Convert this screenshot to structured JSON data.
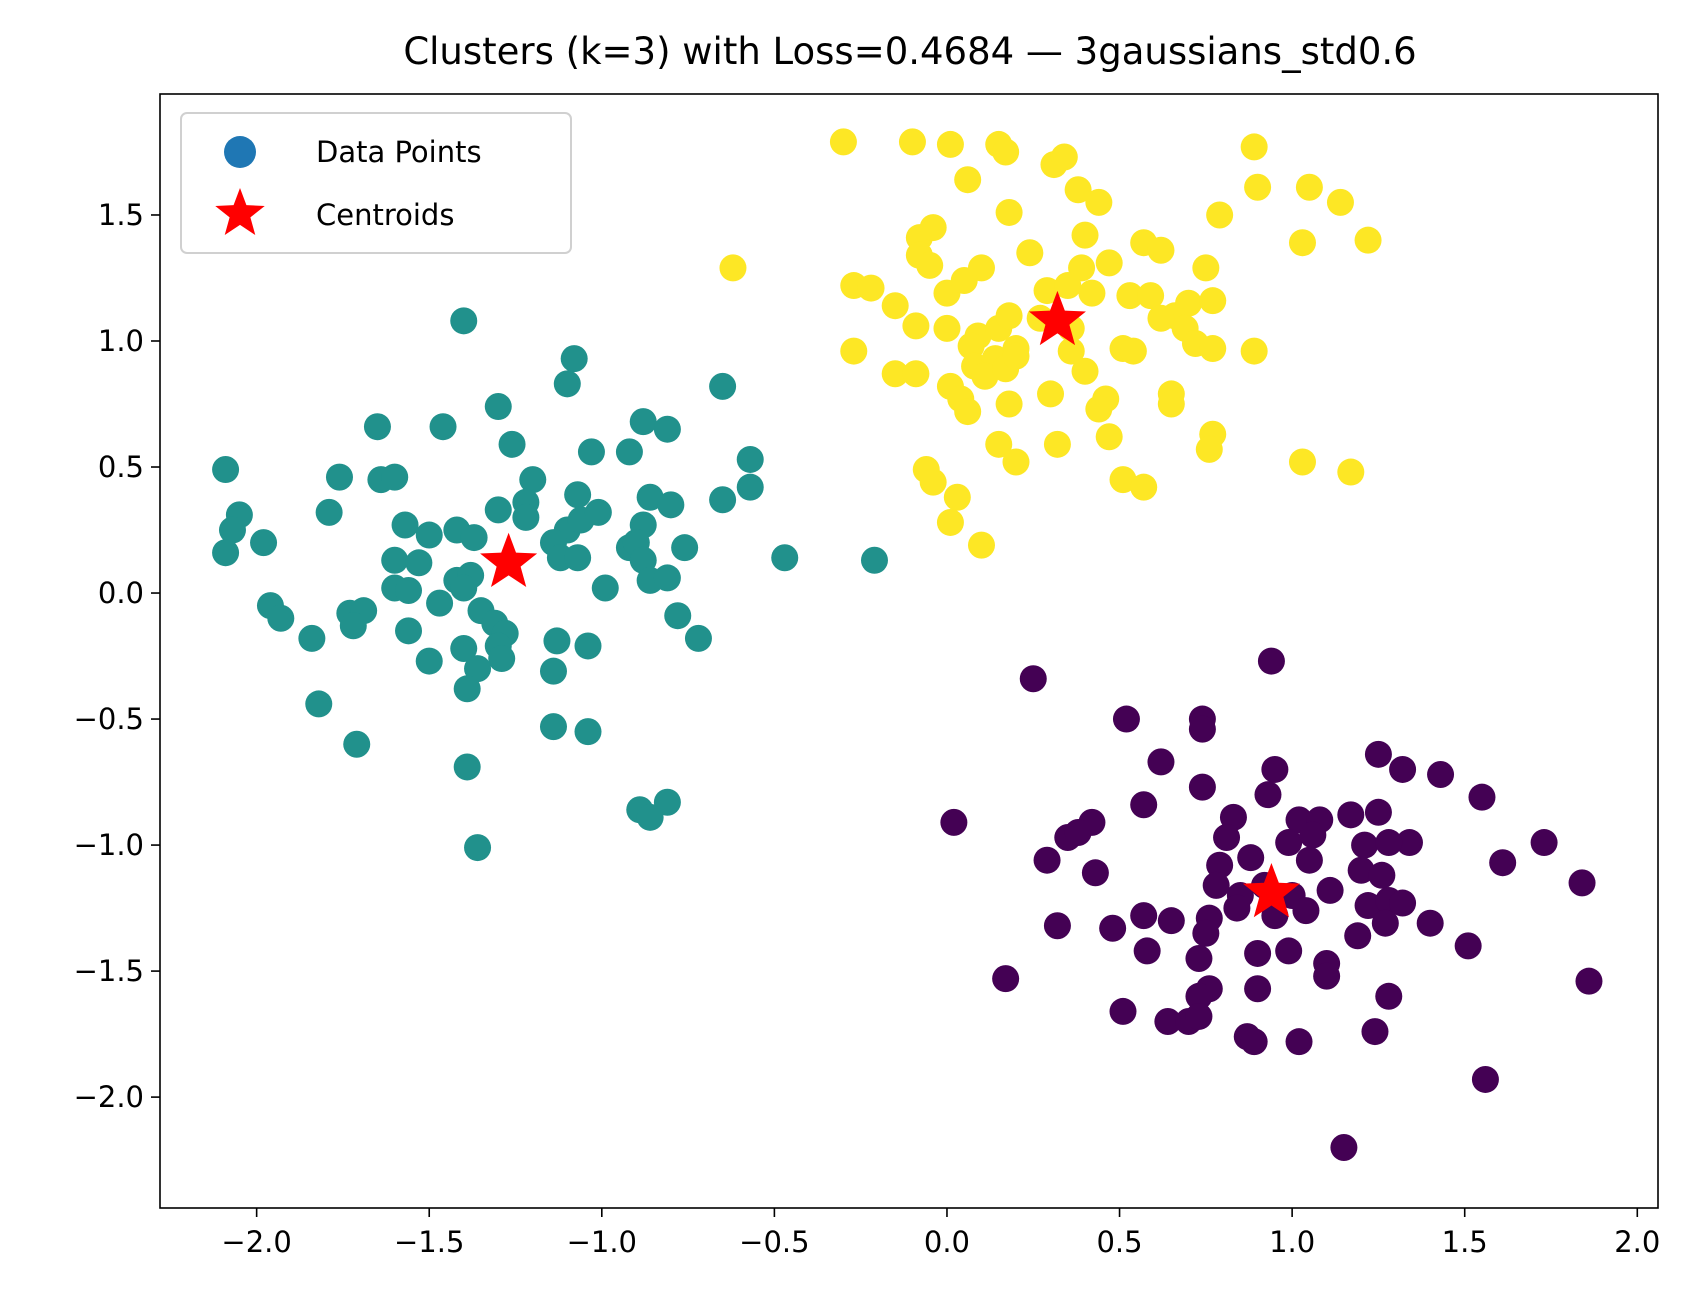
{
  "chart_data": {
    "type": "scatter",
    "title": "Clusters (k=3) with Loss=0.4684 — 3gaussians_std0.6",
    "xlabel": "",
    "ylabel": "",
    "xlim": [
      -2.28,
      2.06
    ],
    "ylim": [
      -2.44,
      1.98
    ],
    "xticks": [
      -2.0,
      -1.5,
      -1.0,
      -0.5,
      0.0,
      0.5,
      1.0,
      1.5,
      2.0
    ],
    "yticks": [
      -2.0,
      -1.5,
      -1.0,
      -0.5,
      0.0,
      0.5,
      1.0,
      1.5
    ],
    "xtick_labels": [
      "−2.0",
      "−1.5",
      "−1.0",
      "−0.5",
      "0.0",
      "0.5",
      "1.0",
      "1.5",
      "2.0"
    ],
    "ytick_labels": [
      "−2.0",
      "−1.5",
      "−1.0",
      "−0.5",
      "0.0",
      "0.5",
      "1.0",
      "1.5"
    ],
    "grid": false,
    "legend": {
      "placement": "top-left",
      "entries": [
        {
          "label": "Data Points",
          "marker": "circle",
          "color": "#1f77b4"
        },
        {
          "label": "Centroids",
          "marker": "star",
          "color": "#ff0000"
        }
      ]
    },
    "clusters": [
      {
        "color": "#440154",
        "points": [
          [
            0.94,
            -0.27
          ],
          [
            0.25,
            -0.34
          ],
          [
            0.52,
            -0.5
          ],
          [
            0.74,
            -0.5
          ],
          [
            0.74,
            -0.54
          ],
          [
            0.62,
            -0.67
          ],
          [
            1.25,
            -0.64
          ],
          [
            1.32,
            -0.7
          ],
          [
            1.43,
            -0.72
          ],
          [
            0.95,
            -0.7
          ],
          [
            0.74,
            -0.77
          ],
          [
            0.93,
            -0.8
          ],
          [
            0.57,
            -0.84
          ],
          [
            1.55,
            -0.81
          ],
          [
            0.02,
            -0.91
          ],
          [
            0.42,
            -0.91
          ],
          [
            0.83,
            -0.89
          ],
          [
            1.02,
            -0.9
          ],
          [
            1.08,
            -0.9
          ],
          [
            1.17,
            -0.88
          ],
          [
            1.25,
            -0.87
          ],
          [
            0.35,
            -0.97
          ],
          [
            0.38,
            -0.95
          ],
          [
            0.81,
            -0.97
          ],
          [
            0.99,
            -0.99
          ],
          [
            1.06,
            -0.96
          ],
          [
            1.21,
            -1.0
          ],
          [
            1.34,
            -0.99
          ],
          [
            1.28,
            -0.99
          ],
          [
            1.73,
            -0.99
          ],
          [
            0.29,
            -1.06
          ],
          [
            0.43,
            -1.11
          ],
          [
            0.79,
            -1.08
          ],
          [
            0.88,
            -1.05
          ],
          [
            1.05,
            -1.06
          ],
          [
            1.2,
            -1.1
          ],
          [
            1.26,
            -1.12
          ],
          [
            1.61,
            -1.07
          ],
          [
            0.78,
            -1.16
          ],
          [
            0.85,
            -1.2
          ],
          [
            0.92,
            -1.16
          ],
          [
            1.0,
            -1.2
          ],
          [
            1.11,
            -1.18
          ],
          [
            1.22,
            -1.24
          ],
          [
            1.28,
            -1.22
          ],
          [
            1.84,
            -1.15
          ],
          [
            0.32,
            -1.32
          ],
          [
            0.48,
            -1.33
          ],
          [
            0.57,
            -1.28
          ],
          [
            0.65,
            -1.3
          ],
          [
            0.76,
            -1.29
          ],
          [
            0.84,
            -1.25
          ],
          [
            0.95,
            -1.28
          ],
          [
            1.04,
            -1.26
          ],
          [
            1.19,
            -1.36
          ],
          [
            1.27,
            -1.31
          ],
          [
            1.32,
            -1.23
          ],
          [
            1.4,
            -1.31
          ],
          [
            0.58,
            -1.42
          ],
          [
            0.75,
            -1.35
          ],
          [
            0.73,
            -1.45
          ],
          [
            0.9,
            -1.43
          ],
          [
            0.99,
            -1.42
          ],
          [
            1.1,
            -1.47
          ],
          [
            1.51,
            -1.4
          ],
          [
            0.17,
            -1.53
          ],
          [
            0.76,
            -1.57
          ],
          [
            0.73,
            -1.6
          ],
          [
            0.9,
            -1.57
          ],
          [
            1.1,
            -1.52
          ],
          [
            1.28,
            -1.6
          ],
          [
            1.86,
            -1.54
          ],
          [
            0.51,
            -1.66
          ],
          [
            0.64,
            -1.7
          ],
          [
            0.7,
            -1.7
          ],
          [
            0.73,
            -1.68
          ],
          [
            0.87,
            -1.76
          ],
          [
            0.89,
            -1.78
          ],
          [
            1.02,
            -1.78
          ],
          [
            1.24,
            -1.74
          ],
          [
            1.56,
            -1.93
          ],
          [
            1.15,
            -2.2
          ]
        ]
      },
      {
        "color": "#21918c",
        "points": [
          [
            -1.4,
            1.08
          ],
          [
            -1.08,
            0.93
          ],
          [
            -1.1,
            0.83
          ],
          [
            -0.65,
            0.82
          ],
          [
            -1.3,
            0.74
          ],
          [
            -1.65,
            0.66
          ],
          [
            -1.46,
            0.66
          ],
          [
            -0.88,
            0.68
          ],
          [
            -0.81,
            0.65
          ],
          [
            -1.26,
            0.59
          ],
          [
            -0.92,
            0.56
          ],
          [
            -1.03,
            0.56
          ],
          [
            -2.09,
            0.49
          ],
          [
            -1.76,
            0.46
          ],
          [
            -1.64,
            0.45
          ],
          [
            -1.6,
            0.46
          ],
          [
            -1.2,
            0.45
          ],
          [
            -0.57,
            0.53
          ],
          [
            -0.57,
            0.42
          ],
          [
            -0.65,
            0.37
          ],
          [
            -1.22,
            0.36
          ],
          [
            -1.07,
            0.39
          ],
          [
            -0.86,
            0.38
          ],
          [
            -0.8,
            0.35
          ],
          [
            -2.05,
            0.31
          ],
          [
            -2.07,
            0.25
          ],
          [
            -1.79,
            0.32
          ],
          [
            -1.57,
            0.27
          ],
          [
            -1.5,
            0.23
          ],
          [
            -1.42,
            0.25
          ],
          [
            -1.37,
            0.22
          ],
          [
            -1.3,
            0.33
          ],
          [
            -1.22,
            0.3
          ],
          [
            -1.1,
            0.25
          ],
          [
            -1.06,
            0.29
          ],
          [
            -1.01,
            0.32
          ],
          [
            -0.88,
            0.27
          ],
          [
            -2.09,
            0.16
          ],
          [
            -1.98,
            0.2
          ],
          [
            -1.6,
            0.13
          ],
          [
            -1.53,
            0.12
          ],
          [
            -1.42,
            0.05
          ],
          [
            -1.38,
            0.07
          ],
          [
            -1.14,
            0.2
          ],
          [
            -1.12,
            0.14
          ],
          [
            -1.07,
            0.14
          ],
          [
            -0.92,
            0.18
          ],
          [
            -0.9,
            0.2
          ],
          [
            -0.88,
            0.13
          ],
          [
            -0.76,
            0.18
          ],
          [
            -0.47,
            0.14
          ],
          [
            -0.21,
            0.13
          ],
          [
            -1.6,
            0.02
          ],
          [
            -1.56,
            0.01
          ],
          [
            -1.47,
            -0.04
          ],
          [
            -1.4,
            0.02
          ],
          [
            -1.35,
            -0.07
          ],
          [
            -0.99,
            0.02
          ],
          [
            -0.86,
            0.05
          ],
          [
            -0.81,
            0.06
          ],
          [
            -1.96,
            -0.05
          ],
          [
            -1.93,
            -0.1
          ],
          [
            -1.73,
            -0.08
          ],
          [
            -1.69,
            -0.07
          ],
          [
            -1.72,
            -0.13
          ],
          [
            -1.56,
            -0.15
          ],
          [
            -1.31,
            -0.12
          ],
          [
            -1.28,
            -0.16
          ],
          [
            -1.3,
            -0.21
          ],
          [
            -1.13,
            -0.19
          ],
          [
            -1.04,
            -0.21
          ],
          [
            -0.78,
            -0.09
          ],
          [
            -0.72,
            -0.18
          ],
          [
            -1.84,
            -0.18
          ],
          [
            -1.5,
            -0.27
          ],
          [
            -1.4,
            -0.22
          ],
          [
            -1.36,
            -0.3
          ],
          [
            -1.29,
            -0.26
          ],
          [
            -1.14,
            -0.31
          ],
          [
            -1.39,
            -0.38
          ],
          [
            -1.82,
            -0.44
          ],
          [
            -1.14,
            -0.53
          ],
          [
            -1.04,
            -0.55
          ],
          [
            -1.71,
            -0.6
          ],
          [
            -1.39,
            -0.69
          ],
          [
            -0.89,
            -0.86
          ],
          [
            -0.81,
            -0.83
          ],
          [
            -0.86,
            -0.89
          ],
          [
            -1.36,
            -1.01
          ]
        ]
      },
      {
        "color": "#fde725",
        "points": [
          [
            -0.3,
            1.79
          ],
          [
            -0.1,
            1.79
          ],
          [
            0.01,
            1.78
          ],
          [
            0.15,
            1.78
          ],
          [
            0.17,
            1.75
          ],
          [
            0.31,
            1.7
          ],
          [
            0.34,
            1.73
          ],
          [
            0.89,
            1.77
          ],
          [
            0.06,
            1.64
          ],
          [
            0.38,
            1.6
          ],
          [
            0.44,
            1.55
          ],
          [
            1.05,
            1.61
          ],
          [
            1.14,
            1.55
          ],
          [
            0.9,
            1.61
          ],
          [
            0.18,
            1.51
          ],
          [
            0.79,
            1.5
          ],
          [
            -0.08,
            1.41
          ],
          [
            -0.04,
            1.45
          ],
          [
            -0.08,
            1.34
          ],
          [
            0.4,
            1.42
          ],
          [
            0.57,
            1.39
          ],
          [
            0.62,
            1.36
          ],
          [
            1.03,
            1.39
          ],
          [
            1.22,
            1.4
          ],
          [
            -0.62,
            1.29
          ],
          [
            -0.05,
            1.3
          ],
          [
            0.1,
            1.29
          ],
          [
            0.24,
            1.35
          ],
          [
            0.39,
            1.29
          ],
          [
            0.47,
            1.31
          ],
          [
            0.75,
            1.29
          ],
          [
            -0.27,
            1.22
          ],
          [
            -0.22,
            1.21
          ],
          [
            -0.15,
            1.14
          ],
          [
            0.0,
            1.19
          ],
          [
            0.05,
            1.24
          ],
          [
            0.29,
            1.2
          ],
          [
            0.35,
            1.22
          ],
          [
            0.42,
            1.19
          ],
          [
            0.53,
            1.18
          ],
          [
            0.59,
            1.18
          ],
          [
            0.66,
            1.1
          ],
          [
            0.7,
            1.15
          ],
          [
            0.77,
            1.16
          ],
          [
            -0.09,
            1.06
          ],
          [
            0.0,
            1.05
          ],
          [
            0.09,
            1.02
          ],
          [
            0.15,
            1.05
          ],
          [
            0.18,
            1.1
          ],
          [
            0.27,
            1.09
          ],
          [
            0.36,
            1.05
          ],
          [
            0.62,
            1.09
          ],
          [
            0.69,
            1.05
          ],
          [
            -0.27,
            0.96
          ],
          [
            0.07,
            0.98
          ],
          [
            0.08,
            0.9
          ],
          [
            0.14,
            0.93
          ],
          [
            0.2,
            0.97
          ],
          [
            0.36,
            0.96
          ],
          [
            0.51,
            0.97
          ],
          [
            0.54,
            0.96
          ],
          [
            0.72,
            0.99
          ],
          [
            0.77,
            0.97
          ],
          [
            0.89,
            0.96
          ],
          [
            -0.15,
            0.87
          ],
          [
            -0.09,
            0.87
          ],
          [
            0.01,
            0.82
          ],
          [
            0.04,
            0.77
          ],
          [
            0.11,
            0.86
          ],
          [
            0.17,
            0.89
          ],
          [
            0.2,
            0.94
          ],
          [
            0.4,
            0.88
          ],
          [
            0.06,
            0.72
          ],
          [
            0.18,
            0.75
          ],
          [
            0.3,
            0.79
          ],
          [
            0.46,
            0.77
          ],
          [
            0.44,
            0.73
          ],
          [
            0.65,
            0.79
          ],
          [
            0.65,
            0.75
          ],
          [
            0.15,
            0.59
          ],
          [
            0.32,
            0.59
          ],
          [
            0.47,
            0.62
          ],
          [
            0.77,
            0.63
          ],
          [
            0.76,
            0.57
          ],
          [
            0.2,
            0.52
          ],
          [
            -0.06,
            0.49
          ],
          [
            -0.04,
            0.44
          ],
          [
            0.51,
            0.45
          ],
          [
            0.57,
            0.42
          ],
          [
            1.03,
            0.52
          ],
          [
            1.17,
            0.48
          ],
          [
            0.03,
            0.38
          ],
          [
            0.01,
            0.28
          ],
          [
            0.1,
            0.19
          ]
        ]
      }
    ],
    "centroids": [
      {
        "x": 0.94,
        "y": -1.19
      },
      {
        "x": -1.27,
        "y": 0.12
      },
      {
        "x": 0.32,
        "y": 1.08
      }
    ]
  }
}
